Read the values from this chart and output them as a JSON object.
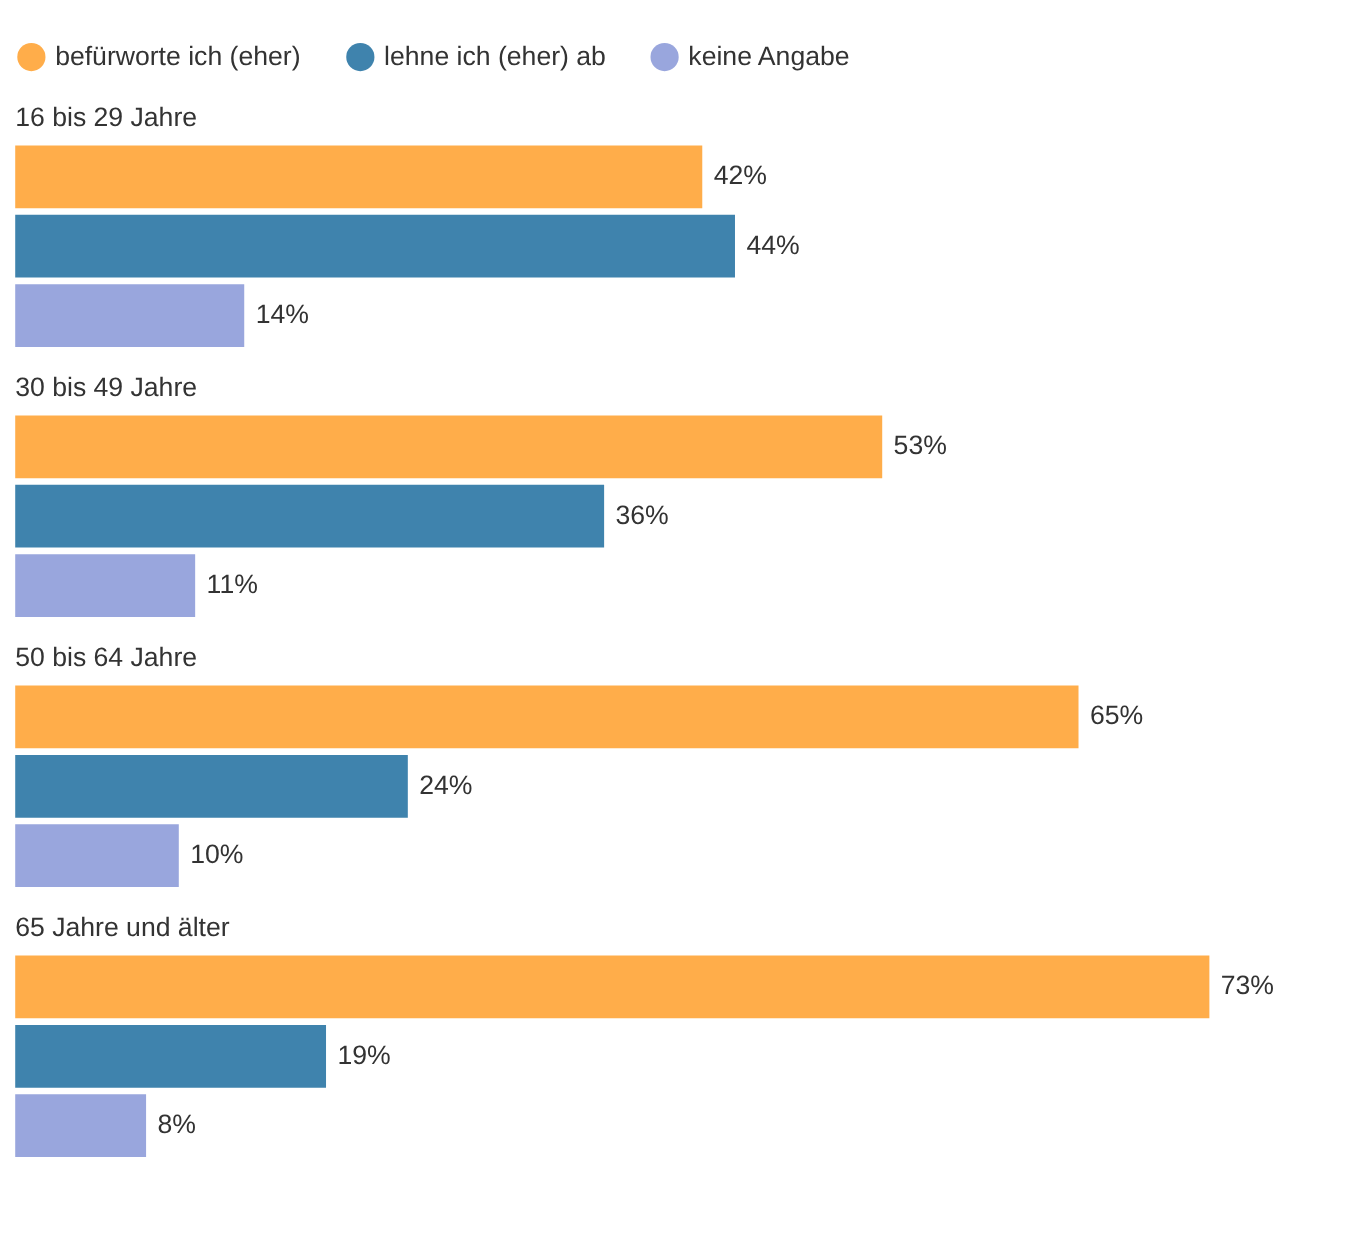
{
  "chart_data": {
    "type": "bar",
    "orientation": "horizontal",
    "legend": "top left",
    "categories": [
      "16 bis 29 Jahre",
      "30 bis 49 Jahre",
      "50 bis 64 Jahre",
      "65 Jahre und älter"
    ],
    "series": [
      {
        "name": "befürworte ich (eher)",
        "color": "#ffad4a",
        "values": [
          42,
          53,
          65,
          73
        ],
        "value_labels": [
          "42%",
          "53%",
          "65%",
          "73%"
        ]
      },
      {
        "name": "lehne ich (eher) ab",
        "color": "#3f83ad",
        "values": [
          44,
          36,
          24,
          19
        ],
        "value_labels": [
          "44%",
          "36%",
          "24%",
          "19%"
        ]
      },
      {
        "name": "keine Angabe",
        "color": "#99a6dd",
        "values": [
          14,
          11,
          10,
          8
        ],
        "value_labels": [
          "14%",
          "11%",
          "10%",
          "8%"
        ]
      }
    ]
  }
}
